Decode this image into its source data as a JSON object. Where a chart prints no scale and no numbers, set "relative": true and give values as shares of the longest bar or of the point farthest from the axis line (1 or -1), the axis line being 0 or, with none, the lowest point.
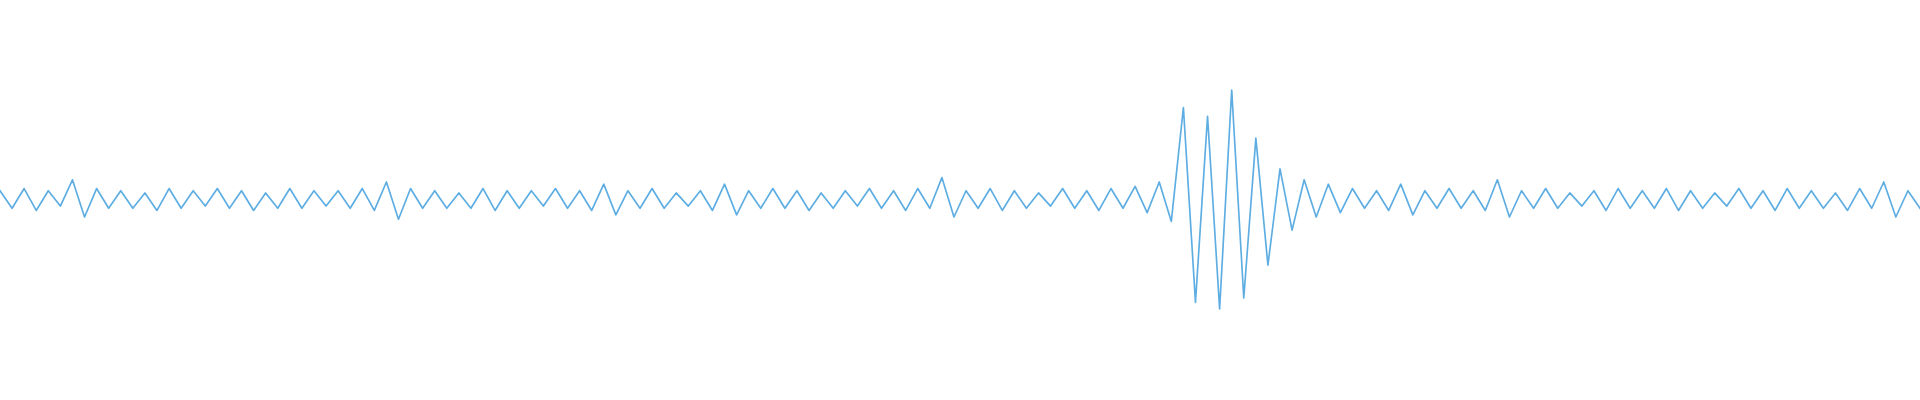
{
  "chart_data": {
    "type": "line",
    "relative": true,
    "tick_labels": false,
    "marker": "none",
    "line_style": "solid",
    "categories": [
      null,
      null,
      null,
      null,
      null,
      null,
      null,
      null,
      null,
      null,
      null,
      null,
      null,
      null,
      null,
      null,
      null,
      null,
      null,
      null,
      null,
      null,
      null,
      null,
      null,
      null,
      null,
      null,
      null,
      null,
      null,
      null,
      null,
      null,
      null,
      null,
      null,
      null,
      null,
      null,
      null,
      null,
      null,
      null,
      null,
      null,
      null,
      null,
      null,
      null,
      null,
      null,
      null,
      null,
      null,
      null,
      null,
      null,
      null,
      null,
      null,
      null,
      null,
      null,
      null,
      null,
      null,
      null,
      null,
      null,
      null,
      null,
      null,
      null,
      null,
      null,
      null,
      null,
      null,
      null,
      null,
      null,
      null,
      null,
      null,
      null,
      null,
      null,
      null,
      null,
      null,
      null,
      null,
      null,
      null,
      null,
      null,
      null,
      null,
      null,
      null,
      null,
      null,
      null,
      null,
      null,
      null,
      null,
      null,
      null,
      null,
      null,
      null,
      null,
      null,
      null,
      null,
      null,
      null,
      null,
      null,
      null,
      null,
      null,
      null,
      null,
      null,
      null,
      null,
      null,
      null,
      null,
      null,
      null,
      null,
      null,
      null,
      null,
      null,
      null,
      null,
      null,
      null,
      null,
      null,
      null,
      null,
      null,
      null,
      null,
      null,
      null,
      null,
      null,
      null,
      null,
      null,
      null,
      null,
      null
    ],
    "series": [
      {
        "color": "#5dade2",
        "values": [
          0.54,
          0.46,
          0.55,
          0.45,
          0.54,
          0.47,
          0.59,
          0.42,
          0.55,
          0.46,
          0.54,
          0.46,
          0.53,
          0.45,
          0.55,
          0.46,
          0.54,
          0.47,
          0.55,
          0.46,
          0.54,
          0.45,
          0.53,
          0.46,
          0.55,
          0.46,
          0.54,
          0.47,
          0.54,
          0.46,
          0.55,
          0.45,
          0.58,
          0.41,
          0.55,
          0.46,
          0.54,
          0.46,
          0.53,
          0.46,
          0.55,
          0.45,
          0.54,
          0.46,
          0.54,
          0.47,
          0.55,
          0.46,
          0.54,
          0.45,
          0.57,
          0.43,
          0.54,
          0.46,
          0.55,
          0.46,
          0.53,
          0.47,
          0.54,
          0.45,
          0.57,
          0.43,
          0.54,
          0.46,
          0.55,
          0.46,
          0.54,
          0.45,
          0.53,
          0.46,
          0.54,
          0.47,
          0.55,
          0.46,
          0.54,
          0.45,
          0.55,
          0.46,
          0.6,
          0.42,
          0.54,
          0.46,
          0.55,
          0.45,
          0.54,
          0.46,
          0.53,
          0.47,
          0.55,
          0.46,
          0.54,
          0.45,
          0.55,
          0.46,
          0.56,
          0.44,
          0.58,
          0.4,
          0.92,
          0.03,
          0.88,
          0.0,
          1.0,
          0.05,
          0.78,
          0.2,
          0.64,
          0.36,
          0.59,
          0.42,
          0.57,
          0.44,
          0.55,
          0.46,
          0.54,
          0.45,
          0.57,
          0.43,
          0.54,
          0.46,
          0.55,
          0.46,
          0.54,
          0.45,
          0.59,
          0.42,
          0.54,
          0.46,
          0.55,
          0.46,
          0.53,
          0.47,
          0.54,
          0.45,
          0.55,
          0.46,
          0.54,
          0.46,
          0.55,
          0.45,
          0.54,
          0.46,
          0.53,
          0.47,
          0.55,
          0.46,
          0.54,
          0.45,
          0.55,
          0.46,
          0.54,
          0.46,
          0.53,
          0.45,
          0.55,
          0.46,
          0.58,
          0.42,
          0.54,
          0.46
        ]
      }
    ]
  }
}
